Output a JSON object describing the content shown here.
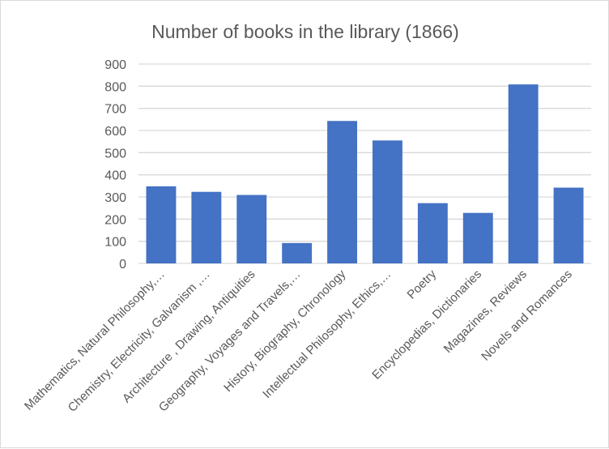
{
  "chart_data": {
    "type": "bar",
    "title": "Number of books in the library (1866)",
    "xlabel": "",
    "ylabel": "",
    "categories": [
      "Mathematics, Natural Philosophy,…",
      "Chemistry, Electricity, Galvanism ,…",
      "Architecture , Drawing, Antiquities",
      "Geography, Voyages and Travels,…",
      "History, Biography, Chronology",
      "Intellectual Philosophy, Ethics,…",
      "Poetry",
      "Encyclopedias, Dictionaries",
      "Magazines, Reviews",
      "Novels and Romances"
    ],
    "values": [
      348,
      323,
      309,
      92,
      643,
      555,
      272,
      228,
      808,
      342
    ],
    "ylim": [
      0,
      900
    ],
    "yticks": [
      0,
      100,
      200,
      300,
      400,
      500,
      600,
      700,
      800,
      900
    ],
    "grid": true,
    "legend": "none",
    "colors": {
      "bar": "#4472c4",
      "grid": "#d9d9d9",
      "text": "#595959"
    }
  }
}
